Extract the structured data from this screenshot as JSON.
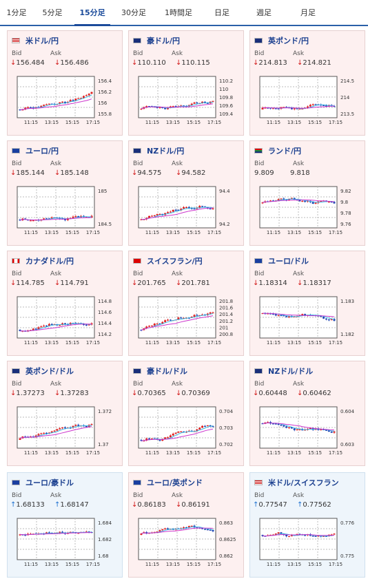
{
  "tabs": [
    "1分足",
    "5分足",
    "15分足",
    "30分足",
    "1時間足",
    "日足",
    "週足",
    "月足"
  ],
  "active_tab": 2,
  "labels": {
    "bid": "Bid",
    "ask": "Ask"
  },
  "xticks": [
    "11:15",
    "13:15",
    "15:15",
    "17:15"
  ],
  "cards": [
    {
      "title": "米ドル/円",
      "flag": "us",
      "dir": "down",
      "bid": "↓156.484",
      "ask": "↓156.486",
      "yticks": [
        "156.4",
        "156.2",
        "156",
        "155.8"
      ]
    },
    {
      "title": "豪ドル/円",
      "flag": "au",
      "dir": "down",
      "bid": "↓110.110",
      "ask": "↓110.115",
      "yticks": [
        "110.2",
        "110",
        "109.8",
        "109.6",
        "109.4"
      ]
    },
    {
      "title": "英ポンド/円",
      "flag": "gb",
      "dir": "down",
      "bid": "↓214.813",
      "ask": "↓214.821",
      "yticks": [
        "214.5",
        "214",
        "213.5"
      ]
    },
    {
      "title": "ユーロ/円",
      "flag": "eu",
      "dir": "down",
      "bid": "↓185.144",
      "ask": "↓185.148",
      "yticks": [
        "185",
        "184.5"
      ]
    },
    {
      "title": "NZドル/円",
      "flag": "nz",
      "dir": "down",
      "bid": "↓94.575",
      "ask": "↓94.582",
      "yticks": [
        "94.4",
        "94.2"
      ]
    },
    {
      "title": "ランド/円",
      "flag": "za",
      "dir": "none",
      "bid": "9.809",
      "ask": "9.818",
      "yticks": [
        "9.82",
        "9.8",
        "9.78",
        "9.76"
      ]
    },
    {
      "title": "カナダドル/円",
      "flag": "ca",
      "dir": "down",
      "bid": "↓114.785",
      "ask": "↓114.791",
      "yticks": [
        "114.8",
        "114.6",
        "114.4",
        "114.2"
      ]
    },
    {
      "title": "スイスフラン/円",
      "flag": "ch",
      "dir": "down",
      "bid": "↓201.765",
      "ask": "↓201.781",
      "yticks": [
        "201.8",
        "201.6",
        "201.4",
        "201.2",
        "201",
        "200.8"
      ]
    },
    {
      "title": "ユーロ/ドル",
      "flag": "eu",
      "dir": "down",
      "bid": "↓1.18314",
      "ask": "↓1.18317",
      "yticks": [
        "1.183",
        "1.182"
      ]
    },
    {
      "title": "英ポンド/ドル",
      "flag": "gb",
      "dir": "down",
      "bid": "↓1.37273",
      "ask": "↓1.37283",
      "yticks": [
        "1.372",
        "1.37"
      ]
    },
    {
      "title": "豪ドル/ドル",
      "flag": "au",
      "dir": "down",
      "bid": "↓0.70365",
      "ask": "↓0.70369",
      "yticks": [
        "0.704",
        "0.703",
        "0.702"
      ]
    },
    {
      "title": "NZドル/ドル",
      "flag": "nz",
      "dir": "down",
      "bid": "↓0.60448",
      "ask": "↓0.60462",
      "yticks": [
        "0.604",
        "0.603"
      ]
    },
    {
      "title": "ユーロ/豪ドル",
      "flag": "eu",
      "dir": "up",
      "bid": "↑1.68133",
      "ask": "↑1.68147",
      "yticks": [
        "1.684",
        "1.682",
        "1.68"
      ]
    },
    {
      "title": "ユーロ/英ポンド",
      "flag": "eu",
      "dir": "down",
      "bid": "↓0.86183",
      "ask": "↓0.86191",
      "yticks": [
        "0.863",
        "0.8625",
        "0.862"
      ]
    },
    {
      "title": "米ドル/スイスフラン",
      "flag": "us",
      "dir": "up",
      "bid": "↑0.77547",
      "ask": "↑0.77562",
      "yticks": [
        "0.776",
        "0.775"
      ]
    }
  ],
  "colors": {
    "up_candle": "#e02020",
    "down_candle": "#1a3fb0",
    "ma_short": "#3ab8e6",
    "ma_long": "#cc33cc",
    "down_arrow": "#d01010",
    "up_arrow": "#1a6fd0"
  }
}
